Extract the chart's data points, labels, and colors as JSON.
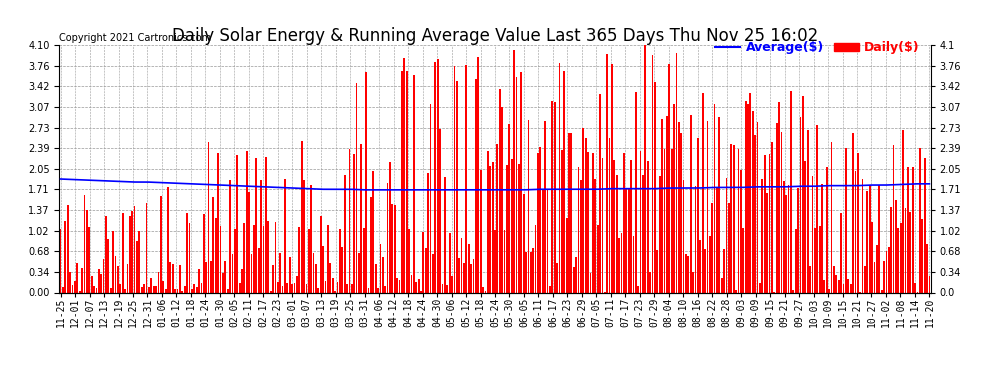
{
  "title": "Daily Solar Energy & Running Average Value Last 365 Days Thu Nov 25 16:02",
  "copyright": "Copyright 2021 Cartronics.com",
  "legend_avg": "Average($)",
  "legend_daily": "Daily($)",
  "ylim": [
    0.0,
    4.1
  ],
  "yticks": [
    0.0,
    0.34,
    0.68,
    1.02,
    1.37,
    1.71,
    2.05,
    2.39,
    2.73,
    3.07,
    3.42,
    3.76,
    4.1
  ],
  "bar_color": "#ff0000",
  "avg_line_color": "#0000ff",
  "background_color": "#ffffff",
  "grid_color": "#999999",
  "title_fontsize": 12,
  "tick_fontsize": 7,
  "copyright_fontsize": 7,
  "legend_fontsize": 9,
  "x_labels": [
    "11-25",
    "12-01",
    "12-07",
    "12-13",
    "12-19",
    "12-25",
    "12-31",
    "01-06",
    "01-12",
    "01-18",
    "01-24",
    "01-30",
    "02-05",
    "02-11",
    "02-17",
    "02-23",
    "03-01",
    "03-07",
    "03-13",
    "03-19",
    "03-25",
    "03-31",
    "04-06",
    "04-12",
    "04-18",
    "04-24",
    "04-30",
    "05-06",
    "05-12",
    "05-18",
    "05-24",
    "05-30",
    "06-05",
    "06-11",
    "06-17",
    "06-23",
    "06-29",
    "07-05",
    "07-11",
    "07-17",
    "07-23",
    "07-29",
    "08-04",
    "08-10",
    "08-16",
    "08-22",
    "08-28",
    "09-03",
    "09-09",
    "09-15",
    "09-21",
    "09-27",
    "10-03",
    "10-09",
    "10-15",
    "10-21",
    "10-27",
    "11-02",
    "11-08",
    "11-14",
    "11-20"
  ],
  "avg_line": [
    1.88,
    1.87,
    1.86,
    1.85,
    1.84,
    1.83,
    1.83,
    1.82,
    1.81,
    1.8,
    1.79,
    1.78,
    1.77,
    1.76,
    1.75,
    1.74,
    1.73,
    1.72,
    1.71,
    1.71,
    1.71,
    1.7,
    1.7,
    1.7,
    1.7,
    1.7,
    1.7,
    1.7,
    1.7,
    1.7,
    1.7,
    1.7,
    1.7,
    1.71,
    1.71,
    1.71,
    1.71,
    1.71,
    1.72,
    1.72,
    1.72,
    1.72,
    1.73,
    1.73,
    1.73,
    1.74,
    1.74,
    1.74,
    1.75,
    1.75,
    1.75,
    1.76,
    1.76,
    1.77,
    1.77,
    1.77,
    1.78,
    1.78,
    1.79,
    1.8,
    1.8
  ],
  "n_days": 365
}
